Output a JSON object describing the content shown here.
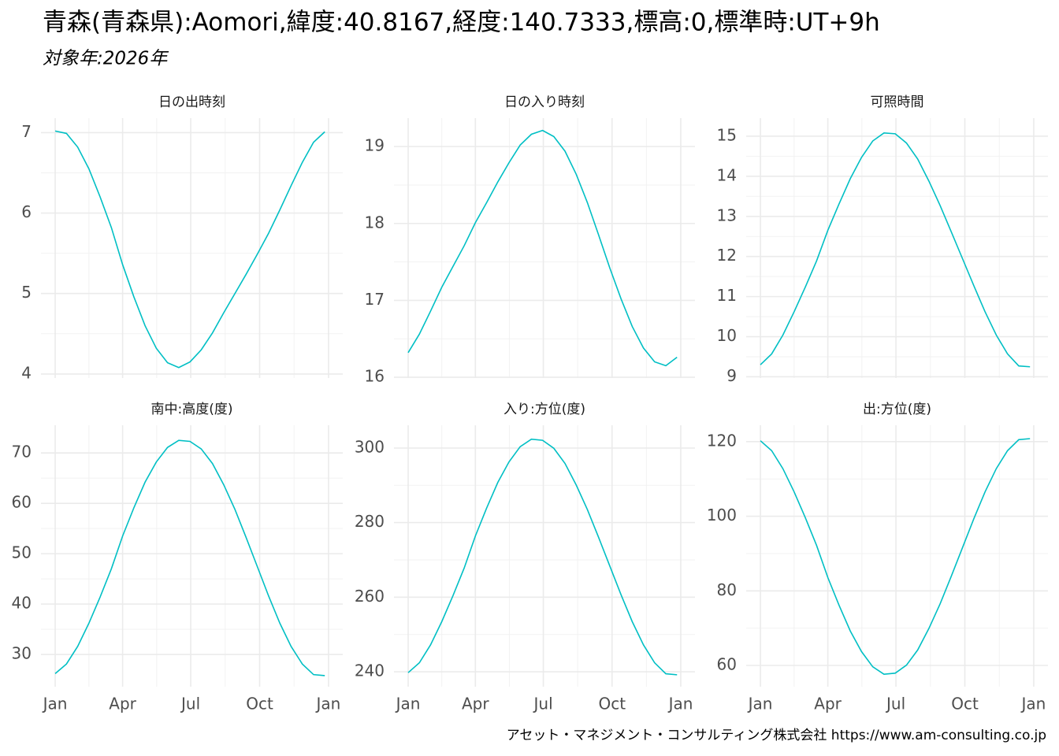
{
  "title": "青森(青森県):Aomori,緯度:40.8167,経度:140.7333,標高:0,標準時:UT+9h",
  "subtitle": "対象年:2026年",
  "caption": "アセット・マネジメント・コンサルティング株式会社 https://www.am-consulting.co.jp",
  "chart_data": [
    {
      "type": "line",
      "title": "日の出時刻",
      "color": "#00BFC4",
      "grid": true,
      "x": [
        1,
        16,
        31,
        46,
        61,
        76,
        91,
        106,
        121,
        136,
        151,
        166,
        181,
        196,
        211,
        226,
        241,
        256,
        271,
        286,
        301,
        316,
        331,
        346,
        361
      ],
      "values": [
        7.02,
        6.99,
        6.82,
        6.55,
        6.2,
        5.82,
        5.36,
        4.96,
        4.6,
        4.32,
        4.14,
        4.08,
        4.15,
        4.3,
        4.51,
        4.76,
        5.0,
        5.24,
        5.49,
        5.75,
        6.04,
        6.34,
        6.63,
        6.88,
        7.01
      ],
      "xlim": [
        -18,
        385
      ],
      "xticks": [
        1,
        91,
        182,
        274,
        366
      ],
      "ylim": [
        3.95,
        7.18
      ],
      "yticks": [
        4,
        5,
        6,
        7
      ]
    },
    {
      "type": "line",
      "title": "日の入り時刻",
      "color": "#00BFC4",
      "grid": true,
      "x": [
        1,
        16,
        31,
        46,
        61,
        76,
        91,
        106,
        121,
        136,
        151,
        166,
        181,
        196,
        211,
        226,
        241,
        256,
        271,
        286,
        301,
        316,
        331,
        346,
        361
      ],
      "values": [
        16.32,
        16.56,
        16.86,
        17.17,
        17.44,
        17.71,
        18.01,
        18.27,
        18.54,
        18.79,
        19.02,
        19.16,
        19.21,
        19.13,
        18.94,
        18.64,
        18.27,
        17.85,
        17.42,
        17.02,
        16.66,
        16.38,
        16.2,
        16.15,
        16.26
      ],
      "xlim": [
        -18,
        385
      ],
      "xticks": [
        1,
        91,
        182,
        274,
        366
      ],
      "ylim": [
        15.99,
        19.37
      ],
      "yticks": [
        16,
        17,
        18,
        19
      ]
    },
    {
      "type": "line",
      "title": "可照時間",
      "color": "#00BFC4",
      "grid": true,
      "x": [
        1,
        16,
        31,
        46,
        61,
        76,
        91,
        106,
        121,
        136,
        151,
        166,
        181,
        196,
        211,
        226,
        241,
        256,
        271,
        286,
        301,
        316,
        331,
        346,
        361
      ],
      "values": [
        9.3,
        9.57,
        10.04,
        10.62,
        11.24,
        11.89,
        12.65,
        13.31,
        13.94,
        14.47,
        14.88,
        15.08,
        15.06,
        14.83,
        14.43,
        13.88,
        13.27,
        12.61,
        11.94,
        11.27,
        10.62,
        10.04,
        9.57,
        9.27,
        9.25
      ],
      "xlim": [
        -18,
        385
      ],
      "xticks": [
        1,
        91,
        182,
        274,
        366
      ],
      "ylim": [
        8.97,
        15.45
      ],
      "yticks": [
        9,
        10,
        11,
        12,
        13,
        14,
        15
      ]
    },
    {
      "type": "line",
      "title": "南中:高度(度)",
      "color": "#00BFC4",
      "grid": true,
      "x": [
        1,
        16,
        31,
        46,
        61,
        76,
        91,
        106,
        121,
        136,
        151,
        166,
        181,
        196,
        211,
        226,
        241,
        256,
        271,
        286,
        301,
        316,
        331,
        346,
        361
      ],
      "values": [
        26.2,
        28.1,
        31.6,
        36.2,
        41.4,
        47.0,
        53.5,
        59.1,
        64.2,
        68.2,
        71.1,
        72.5,
        72.3,
        70.8,
        67.9,
        63.7,
        58.8,
        53.2,
        47.4,
        41.6,
        36.2,
        31.6,
        28.1,
        26.0,
        25.8
      ],
      "xlim": [
        -18,
        385
      ],
      "xticks": [
        {
          "value": 1,
          "label": "Jan"
        },
        {
          "value": 91,
          "label": "Apr"
        },
        {
          "value": 182,
          "label": "Jul"
        },
        {
          "value": 274,
          "label": "Oct"
        },
        {
          "value": 366,
          "label": "Jan"
        }
      ],
      "ylim": [
        23.6,
        75.5
      ],
      "yticks": [
        30,
        40,
        50,
        60,
        70
      ]
    },
    {
      "type": "line",
      "title": "入り:方位(度)",
      "color": "#00BFC4",
      "grid": true,
      "x": [
        1,
        16,
        31,
        46,
        61,
        76,
        91,
        106,
        121,
        136,
        151,
        166,
        181,
        196,
        211,
        226,
        241,
        256,
        271,
        286,
        301,
        316,
        331,
        346,
        361
      ],
      "values": [
        239.76,
        242.41,
        247.23,
        253.45,
        260.4,
        267.81,
        276.41,
        283.87,
        290.76,
        296.28,
        300.36,
        302.36,
        302.07,
        299.93,
        295.86,
        290.08,
        283.47,
        276.02,
        268.34,
        260.66,
        253.45,
        247.23,
        242.41,
        239.47,
        239.19
      ],
      "xlim": [
        -18,
        385
      ],
      "xticks": [
        {
          "value": 1,
          "label": "Jan"
        },
        {
          "value": 91,
          "label": "Apr"
        },
        {
          "value": 182,
          "label": "Jul"
        },
        {
          "value": 274,
          "label": "Oct"
        },
        {
          "value": 366,
          "label": "Jan"
        }
      ],
      "ylim": [
        236.0,
        306.1
      ],
      "yticks": [
        240,
        260,
        280,
        300
      ]
    },
    {
      "type": "line",
      "title": "出:方位(度)",
      "color": "#00BFC4",
      "grid": true,
      "x": [
        1,
        16,
        31,
        46,
        61,
        76,
        91,
        106,
        121,
        136,
        151,
        166,
        181,
        196,
        211,
        226,
        241,
        256,
        271,
        286,
        301,
        316,
        331,
        346,
        361
      ],
      "values": [
        120.24,
        117.59,
        112.77,
        106.55,
        99.6,
        92.19,
        83.59,
        76.13,
        69.24,
        63.72,
        59.64,
        57.64,
        57.93,
        60.07,
        64.14,
        69.92,
        76.53,
        83.98,
        91.66,
        99.34,
        106.55,
        112.77,
        117.59,
        120.53,
        120.81
      ],
      "xlim": [
        -18,
        385
      ],
      "xticks": [
        {
          "value": 1,
          "label": "Jan"
        },
        {
          "value": 91,
          "label": "Apr"
        },
        {
          "value": 182,
          "label": "Jul"
        },
        {
          "value": 274,
          "label": "Oct"
        },
        {
          "value": 366,
          "label": "Jan"
        }
      ],
      "ylim": [
        54.3,
        124.4
      ],
      "yticks": [
        60,
        80,
        100,
        120
      ]
    }
  ]
}
